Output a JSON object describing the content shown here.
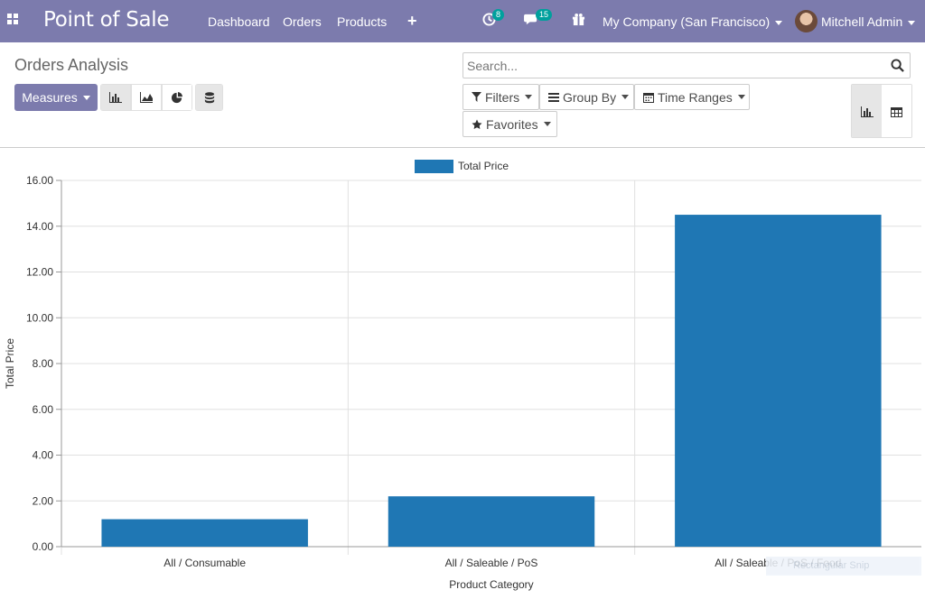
{
  "navbar": {
    "brand": "Point of Sale",
    "menus": [
      "Dashboard",
      "Orders",
      "Products"
    ],
    "activity_count": "8",
    "messages_count": "15",
    "company": "My Company (San Francisco)",
    "user": "Mitchell Admin"
  },
  "control_panel": {
    "breadcrumb": "Orders Analysis",
    "measures_label": "Measures",
    "search_placeholder": "Search...",
    "filters_label": "Filters",
    "group_by_label": "Group By",
    "time_ranges_label": "Time Ranges",
    "favorites_label": "Favorites"
  },
  "colors": {
    "navbar": "#7c7bad",
    "bar": "#1f77b4",
    "badge": "#00a09d"
  },
  "chart_data": {
    "type": "bar",
    "categories": [
      "All / Consumable",
      "All / Saleable / PoS",
      "All / Saleable / PoS / Food"
    ],
    "series": [
      {
        "name": "Total Price",
        "values": [
          1.2,
          2.2,
          14.5
        ]
      }
    ],
    "xlabel": "Product Category",
    "ylabel": "Total Price",
    "ylim": [
      0,
      16
    ],
    "yticks": [
      "0.00",
      "2.00",
      "4.00",
      "6.00",
      "8.00",
      "10.00",
      "12.00",
      "14.00",
      "16.00"
    ],
    "legend": "top-center",
    "grid": true
  },
  "overlay": {
    "snip_text": "Rectangular Snip"
  }
}
